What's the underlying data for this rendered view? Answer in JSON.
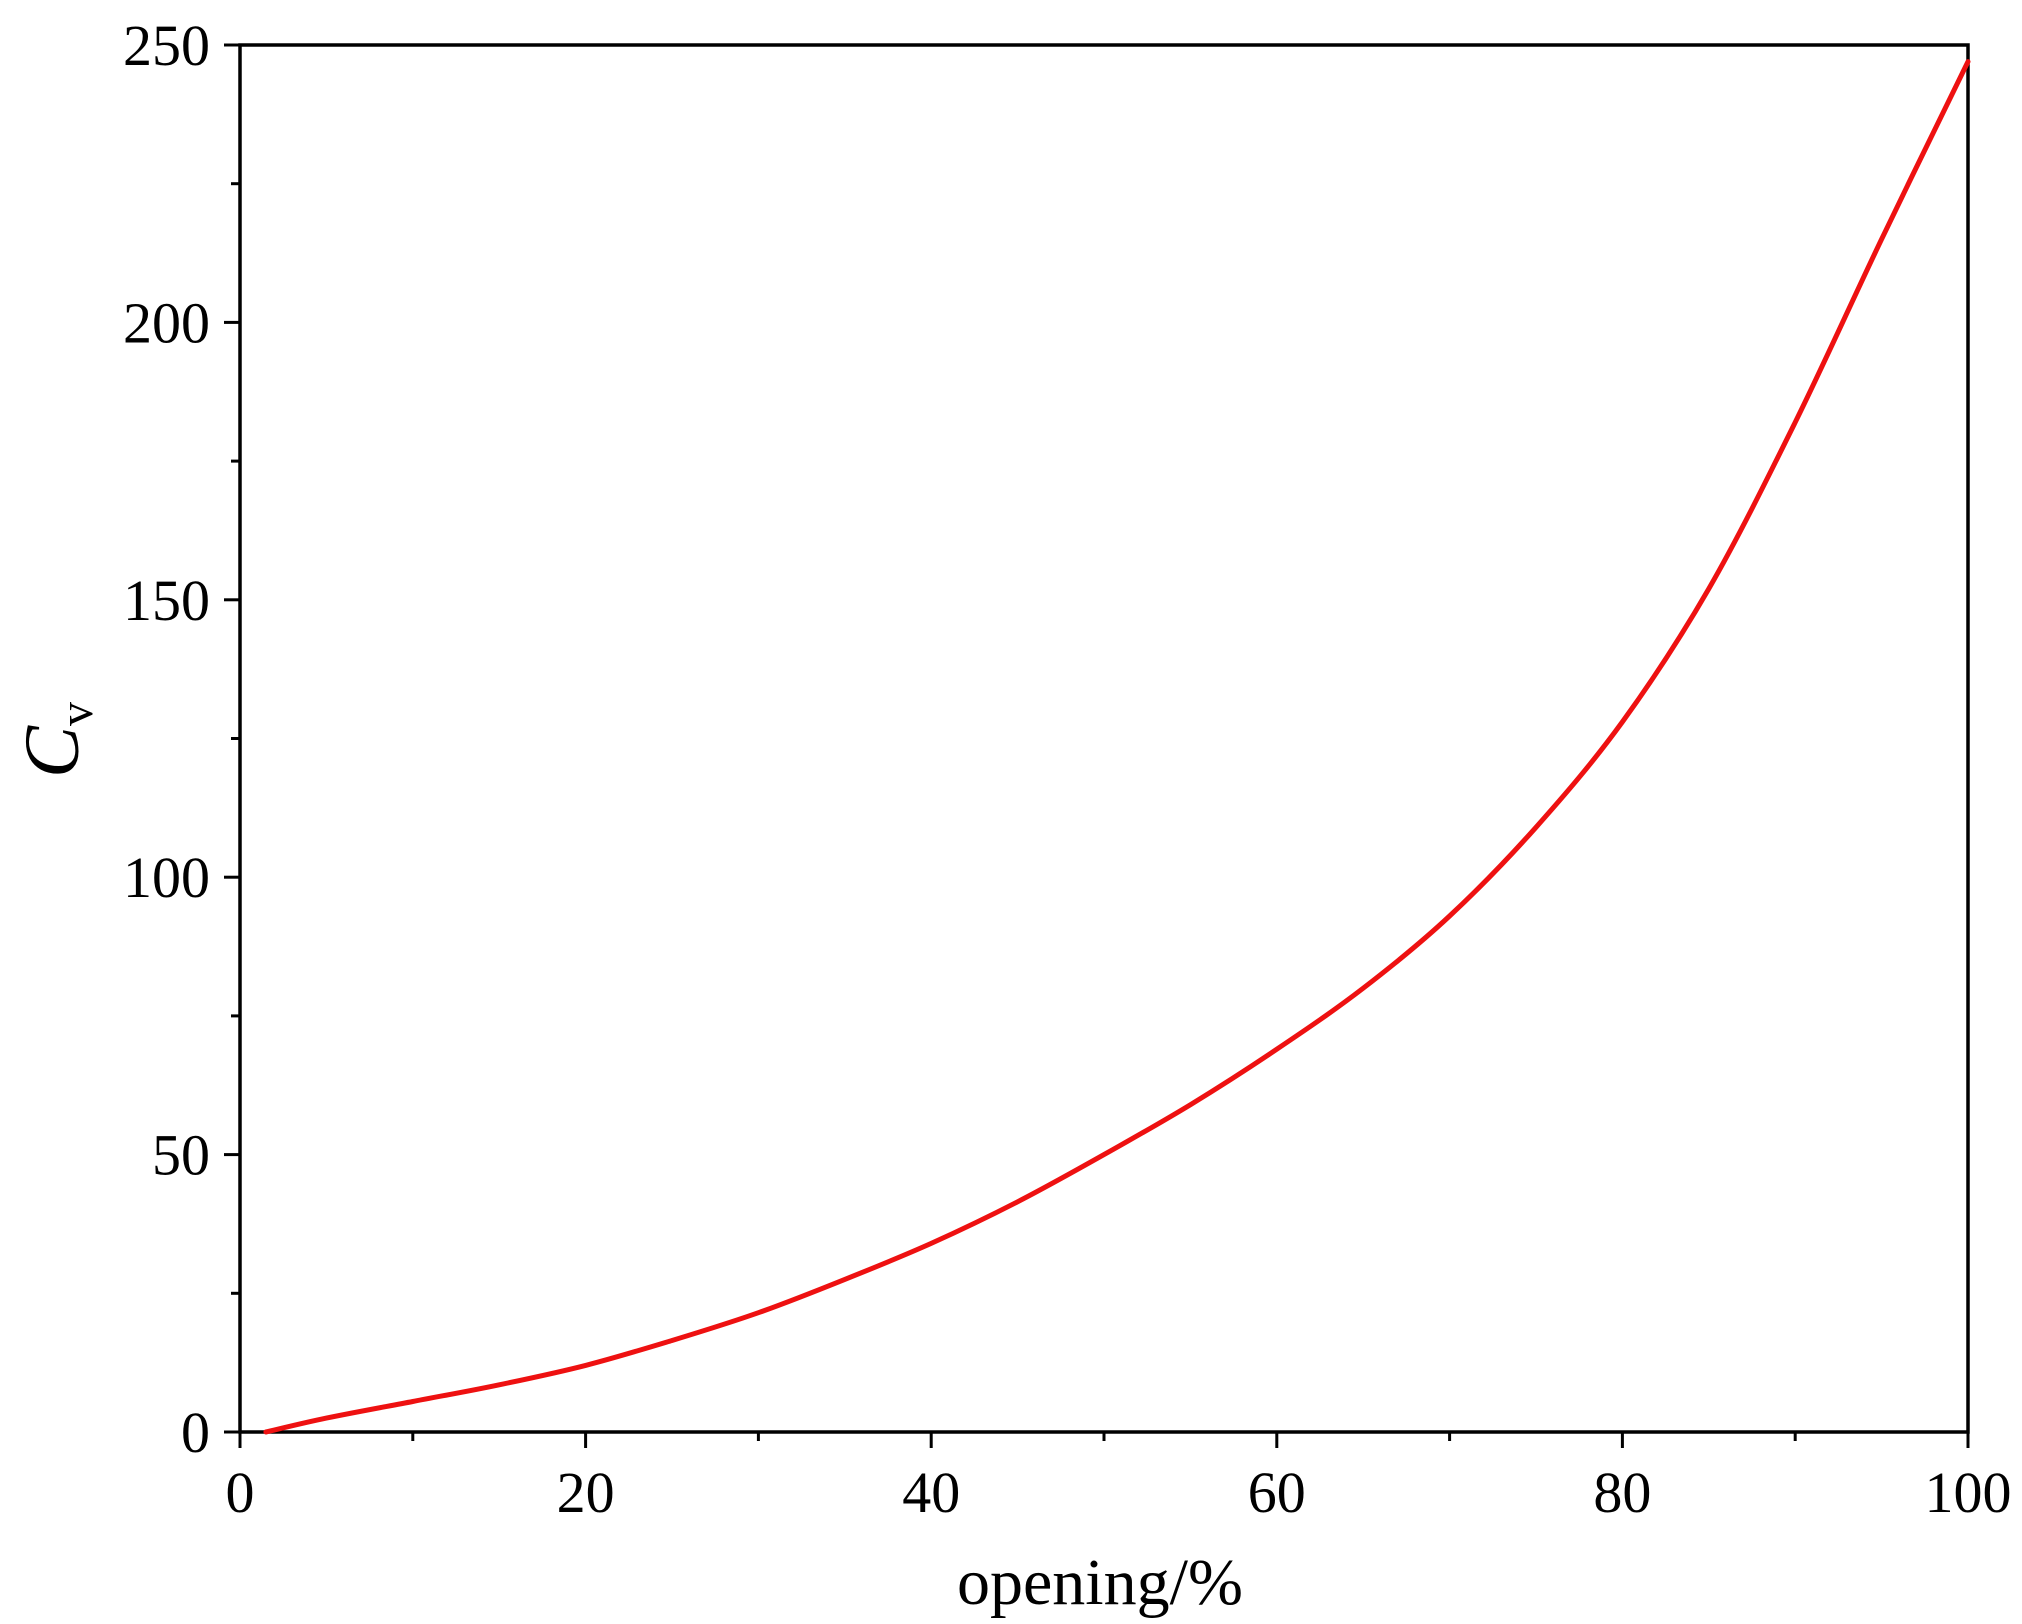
{
  "chart_data": {
    "type": "line",
    "title": "",
    "xlabel": "opening/%",
    "ylabel": {
      "main": "C",
      "subscript": "v"
    },
    "xlim": [
      0,
      100
    ],
    "ylim": [
      0,
      250
    ],
    "x_ticks": [
      0,
      20,
      40,
      60,
      80,
      100
    ],
    "x_minor_ticks": [
      10,
      30,
      50,
      70,
      90
    ],
    "y_ticks": [
      0,
      50,
      100,
      150,
      200,
      250
    ],
    "y_minor_ticks": [
      25,
      75,
      125,
      175,
      225
    ],
    "grid": false,
    "legend": "none",
    "series": [
      {
        "color": "#ee1111",
        "x": [
          1.5,
          5,
          10,
          15,
          20,
          25,
          30,
          35,
          40,
          45,
          50,
          55,
          60,
          65,
          70,
          75,
          80,
          85,
          90,
          95,
          100
        ],
        "y": [
          0,
          2.5,
          5.5,
          8.5,
          12,
          16.5,
          21.5,
          27.5,
          34,
          41.5,
          50,
          59,
          69,
          80,
          93,
          109,
          128,
          152,
          182,
          215,
          247
        ]
      }
    ]
  }
}
